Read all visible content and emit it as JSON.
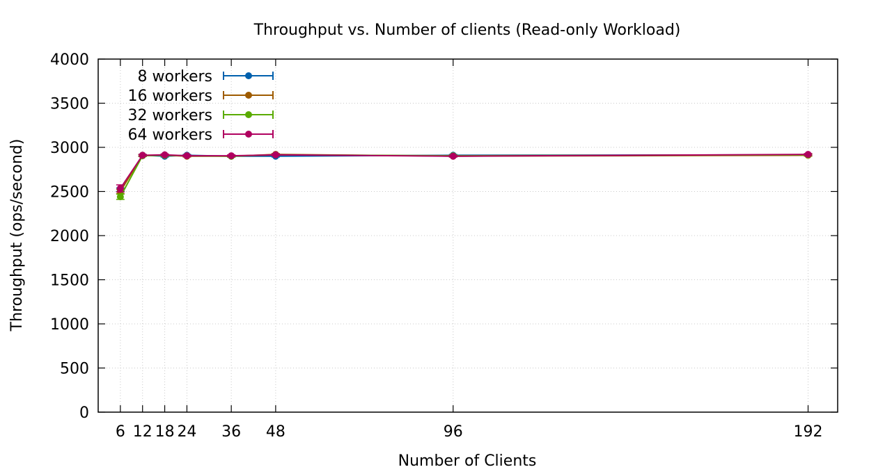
{
  "chart_data": {
    "type": "line",
    "title": "Throughput vs. Number of clients (Read-only Workload)",
    "xlabel": "Number of Clients",
    "ylabel": "Throughput (ops/second)",
    "x": [
      6,
      12,
      18,
      24,
      36,
      48,
      96,
      192
    ],
    "xlim": [
      0,
      200
    ],
    "ylim": [
      0,
      4000
    ],
    "xticks": [
      6,
      12,
      18,
      24,
      36,
      48,
      96,
      192
    ],
    "yticks": [
      0,
      500,
      1000,
      1500,
      2000,
      2500,
      3000,
      3500,
      4000
    ],
    "grid": true,
    "legend_position": "top-left",
    "error_bars": true,
    "series": [
      {
        "name": "8 workers",
        "color": "#0060ad",
        "values": [
          2520,
          2910,
          2900,
          2910,
          2900,
          2900,
          2910,
          2915
        ],
        "errors": [
          20,
          10,
          10,
          10,
          10,
          10,
          10,
          10
        ]
      },
      {
        "name": "16 workers",
        "color": "#9e5b00",
        "values": [
          2500,
          2910,
          2910,
          2900,
          2900,
          2920,
          2900,
          2910
        ],
        "errors": [
          25,
          10,
          10,
          10,
          10,
          10,
          10,
          10
        ]
      },
      {
        "name": "32 workers",
        "color": "#5aab00",
        "values": [
          2440,
          2905,
          2910,
          2905,
          2900,
          2915,
          2905,
          2915
        ],
        "errors": [
          30,
          10,
          10,
          10,
          10,
          10,
          10,
          10
        ]
      },
      {
        "name": "64 workers",
        "color": "#b0005f",
        "values": [
          2535,
          2910,
          2915,
          2905,
          2905,
          2915,
          2900,
          2920
        ],
        "errors": [
          40,
          10,
          10,
          10,
          10,
          10,
          10,
          10
        ]
      }
    ]
  }
}
